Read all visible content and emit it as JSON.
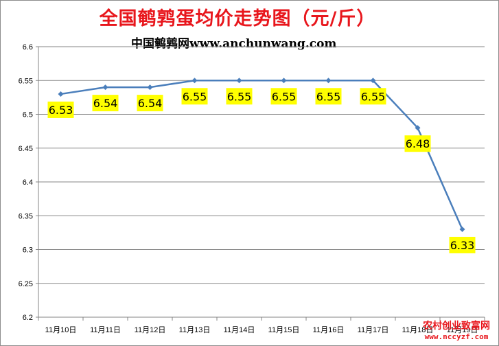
{
  "colors": {
    "title": "#e8161c",
    "line": "#4a7ebb",
    "label_bg": "#ffff00",
    "watermark": "#e8161c"
  },
  "chart_data": {
    "type": "line",
    "title": "全国鹌鹑蛋均价走势图（元/斤）",
    "subtitle": "中国鹌鹑网www.anchunwang.com",
    "xlabel": "",
    "ylabel": "",
    "categories": [
      "11月10日",
      "11月11日",
      "11月12日",
      "11月13日",
      "11月14日",
      "11月15日",
      "11月16日",
      "11月17日",
      "11月18日",
      "11月19日"
    ],
    "series": [
      {
        "values": [
          6.53,
          6.54,
          6.54,
          6.55,
          6.55,
          6.55,
          6.55,
          6.55,
          6.48,
          6.33
        ]
      }
    ],
    "data_labels": [
      "6.53",
      "6.54",
      "6.54",
      "6.55",
      "6.55",
      "6.55",
      "6.55",
      "6.55",
      "6.48",
      "6.33"
    ],
    "ylim": [
      6.2,
      6.6
    ],
    "yticks": [
      "6.2",
      "6.25",
      "6.3",
      "6.35",
      "6.4",
      "6.45",
      "6.5",
      "6.55",
      "6.6"
    ],
    "grid": true,
    "legend": "none"
  },
  "watermark": {
    "line1": "农村创业致富网",
    "line2": "www.nccyzf.com"
  }
}
